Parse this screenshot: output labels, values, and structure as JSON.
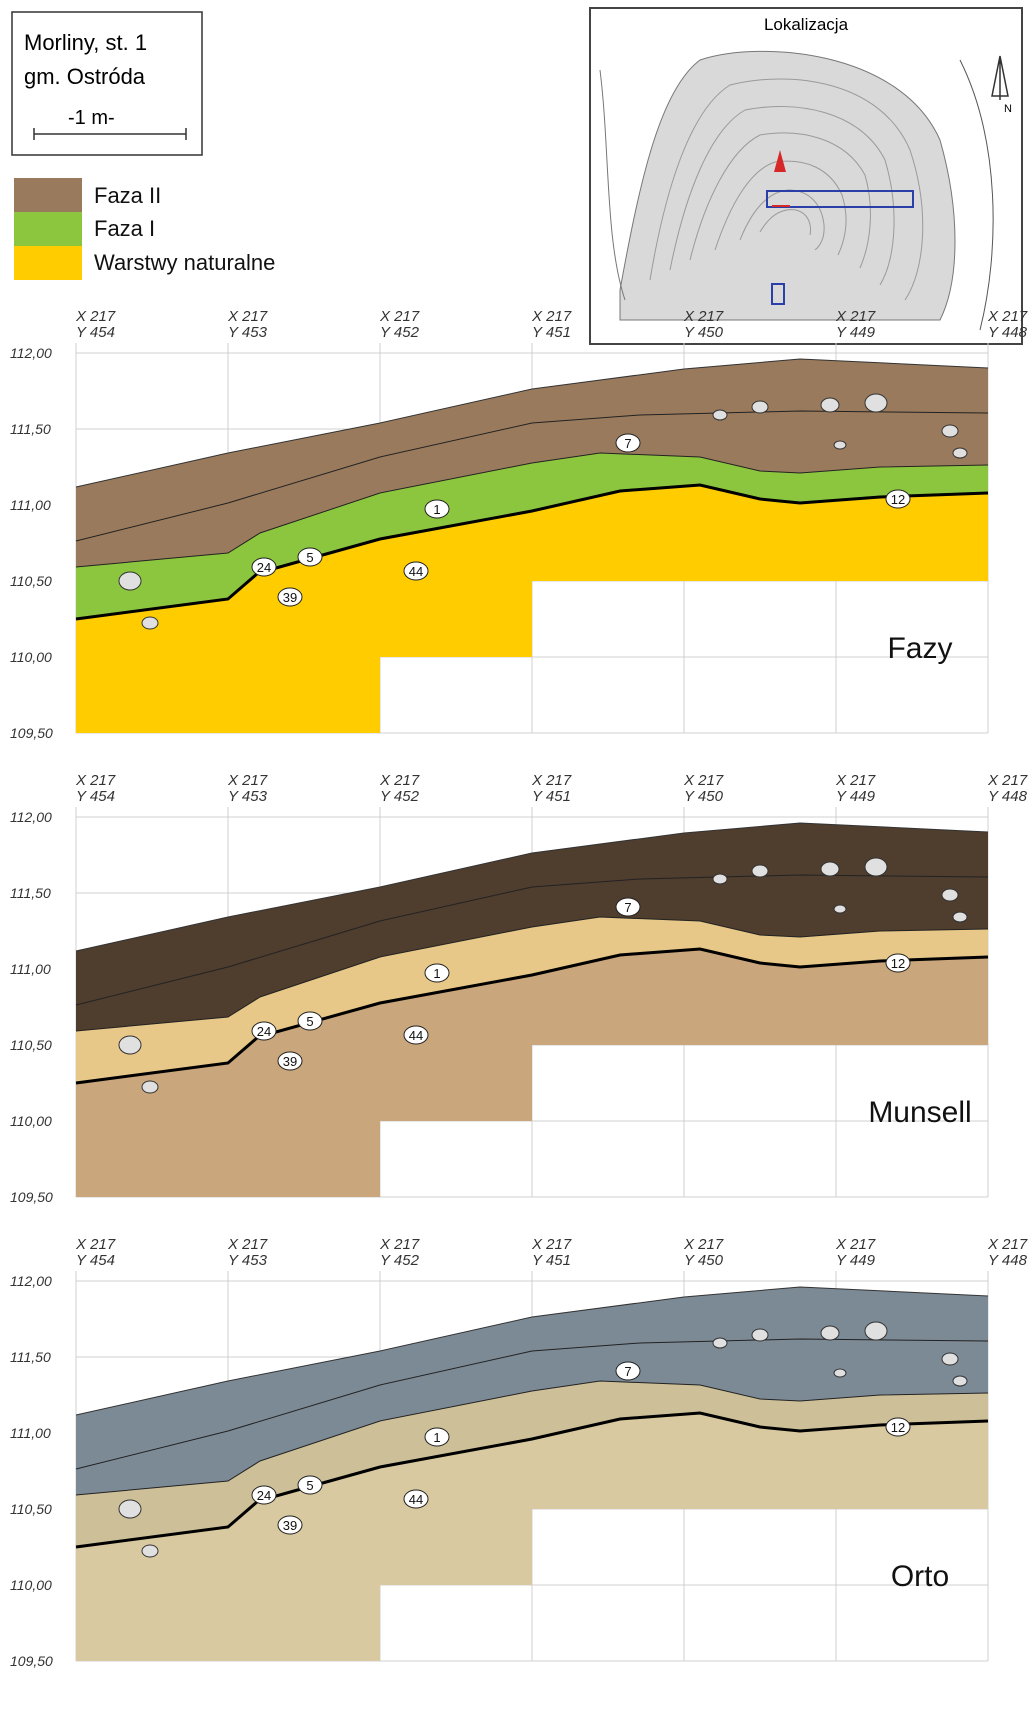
{
  "site": {
    "line1": "Morliny, st. 1",
    "line2": "gm. Ostróda",
    "scale": "-1 m-"
  },
  "legend": [
    {
      "label": "Faza II",
      "color": "#9a7a5c"
    },
    {
      "label": "Faza I",
      "color": "#8cc63f"
    },
    {
      "label": "Warstwy naturalne",
      "color": "#ffcc00"
    }
  ],
  "inset": {
    "title": "Lokalizacja",
    "north": "N"
  },
  "grid_columns": [
    {
      "x": "X 217",
      "y": "Y 454"
    },
    {
      "x": "X 217",
      "y": "Y 453"
    },
    {
      "x": "X 217",
      "y": "Y 452"
    },
    {
      "x": "X 217",
      "y": "Y 451"
    },
    {
      "x": "X 217",
      "y": "Y 450"
    },
    {
      "x": "X 217",
      "y": "Y 449"
    },
    {
      "x": "X 217",
      "y": "Y 448"
    }
  ],
  "elevations": [
    "112,00",
    "111,50",
    "111,00",
    "110,50",
    "110,00",
    "109,50"
  ],
  "layer_tags": [
    "1",
    "5",
    "7",
    "12",
    "24",
    "39",
    "44"
  ],
  "panels": [
    {
      "title": "Fazy",
      "colors": {
        "top": "#9a7a5c",
        "mid": "#8cc63f",
        "base": "#ffcc00",
        "step": "#ffcc00"
      }
    },
    {
      "title": "Munsell",
      "colors": {
        "top": "#4f3d2e",
        "mid": "#e8c888",
        "base": "#c9a67c",
        "step": "#c9a67c"
      }
    },
    {
      "title": "Orto",
      "colors": {
        "top": "#7c8a96",
        "mid": "#cdbf98",
        "base": "#d9c9a0",
        "step": "#d9c9a0"
      }
    }
  ]
}
